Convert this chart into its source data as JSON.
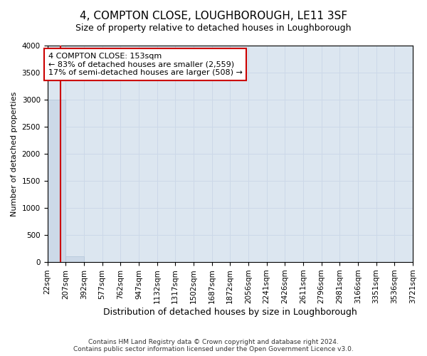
{
  "title": "4, COMPTON CLOSE, LOUGHBOROUGH, LE11 3SF",
  "subtitle": "Size of property relative to detached houses in Loughborough",
  "xlabel": "Distribution of detached houses by size in Loughborough",
  "ylabel": "Number of detached properties",
  "bin_labels": [
    "22sqm",
    "207sqm",
    "392sqm",
    "577sqm",
    "762sqm",
    "947sqm",
    "1132sqm",
    "1317sqm",
    "1502sqm",
    "1687sqm",
    "1872sqm",
    "2056sqm",
    "2241sqm",
    "2426sqm",
    "2611sqm",
    "2796sqm",
    "2981sqm",
    "3166sqm",
    "3351sqm",
    "3536sqm",
    "3721sqm"
  ],
  "bar_heights": [
    3000,
    100,
    0,
    0,
    0,
    0,
    0,
    0,
    0,
    0,
    0,
    0,
    0,
    0,
    0,
    0,
    0,
    0,
    0,
    0
  ],
  "bar_color": "#ccd9e8",
  "bar_edgecolor": "#b0c4d8",
  "property_line_x": 0.865,
  "property_line_color": "#cc0000",
  "ylim": [
    0,
    4000
  ],
  "yticks": [
    0,
    500,
    1000,
    1500,
    2000,
    2500,
    3000,
    3500,
    4000
  ],
  "annotation_text": "4 COMPTON CLOSE: 153sqm\n← 83% of detached houses are smaller (2,559)\n17% of semi-detached houses are larger (508) →",
  "annotation_box_color": "#ffffff",
  "annotation_box_edgecolor": "#cc0000",
  "footer_line1": "Contains HM Land Registry data © Crown copyright and database right 2024.",
  "footer_line2": "Contains public sector information licensed under the Open Government Licence v3.0.",
  "grid_color": "#ccd8e8",
  "background_color": "#dce6f0",
  "title_fontsize": 11,
  "subtitle_fontsize": 9,
  "ylabel_fontsize": 8,
  "xlabel_fontsize": 9,
  "tick_fontsize": 7.5,
  "annotation_fontsize": 8
}
